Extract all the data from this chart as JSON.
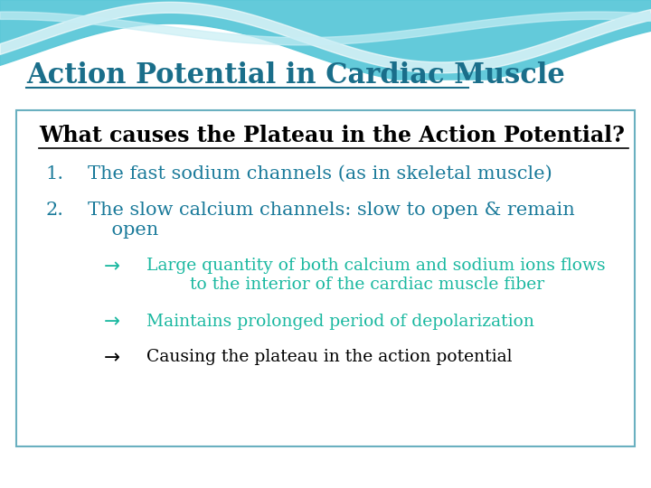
{
  "title": "Action Potential in Cardiac Muscle",
  "title_color": "#1a6e8a",
  "title_fontsize": 22,
  "bg_color": "#dff0f5",
  "box_border": "#6ab0c0",
  "header": "What causes the Plateau in the Action Potential?",
  "header_color": "#000000",
  "header_fontsize": 17,
  "item1_num": "1.",
  "item1_text": "The fast sodium channels (as in skeletal muscle)",
  "item1_color": "#1a7a9a",
  "item1_fontsize": 15,
  "item2_num": "2.",
  "item2_text": "The slow calcium channels: slow to open & remain\n    open",
  "item2_color": "#1a7a9a",
  "item2_fontsize": 15,
  "bullet1_arrow": "→",
  "bullet1_text": "Large quantity of both calcium and sodium ions flows\n        to the interior of the cardiac muscle fiber",
  "bullet1_color": "#1ab8a0",
  "bullet1_fontsize": 13.5,
  "bullet2_arrow": "→",
  "bullet2_text": "Maintains prolonged period of depolarization",
  "bullet2_color": "#1ab8a0",
  "bullet2_fontsize": 13.5,
  "bullet3_arrow": "→",
  "bullet3_text": "Causing the plateau in the action potential",
  "bullet3_color": "#000000",
  "bullet3_fontsize": 13.5
}
